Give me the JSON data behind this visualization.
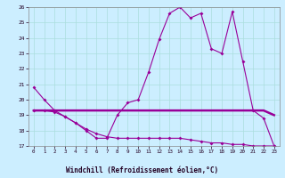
{
  "title": "",
  "xlabel": "Windchill (Refroidissement éolien,°C)",
  "background_color": "#cceeff",
  "grid_color": "#aadddd",
  "line_color": "#990099",
  "hours": [
    0,
    1,
    2,
    3,
    4,
    5,
    6,
    7,
    8,
    9,
    10,
    11,
    12,
    13,
    14,
    15,
    16,
    17,
    18,
    19,
    20,
    21,
    22,
    23
  ],
  "line1": [
    20.8,
    20.0,
    19.3,
    18.9,
    18.5,
    18.0,
    17.5,
    17.5,
    19.0,
    19.8,
    20.0,
    21.8,
    23.9,
    25.6,
    26.0,
    25.3,
    25.6,
    23.3,
    23.0,
    25.7,
    22.5,
    19.3,
    18.8,
    17.0
  ],
  "line2": [
    19.3,
    19.3,
    19.3,
    19.3,
    19.3,
    19.3,
    19.3,
    19.3,
    19.3,
    19.3,
    19.3,
    19.3,
    19.3,
    19.3,
    19.3,
    19.3,
    19.3,
    19.3,
    19.3,
    19.3,
    19.3,
    19.3,
    19.3,
    19.0
  ],
  "line3": [
    19.3,
    19.3,
    19.2,
    18.9,
    18.5,
    18.1,
    17.8,
    17.6,
    17.5,
    17.5,
    17.5,
    17.5,
    17.5,
    17.5,
    17.5,
    17.4,
    17.3,
    17.2,
    17.2,
    17.1,
    17.1,
    17.0,
    17.0,
    17.0
  ],
  "ylim": [
    17,
    26
  ],
  "xlim": [
    -0.5,
    23.5
  ],
  "yticks": [
    17,
    18,
    19,
    20,
    21,
    22,
    23,
    24,
    25,
    26
  ],
  "xticks": [
    0,
    1,
    2,
    3,
    4,
    5,
    6,
    7,
    8,
    9,
    10,
    11,
    12,
    13,
    14,
    15,
    16,
    17,
    18,
    19,
    20,
    21,
    22,
    23
  ]
}
